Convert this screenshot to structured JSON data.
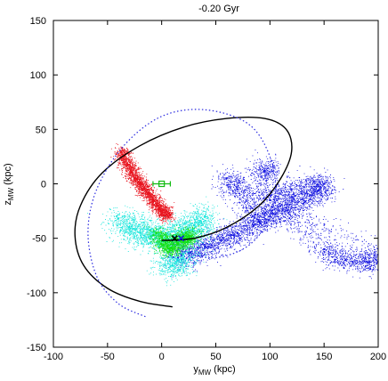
{
  "chart_data": {
    "type": "scatter",
    "title": "-0.20 Gyr",
    "xlabel": {
      "base": "y",
      "sub": "MW",
      "unit": " (kpc)"
    },
    "ylabel": {
      "base": "z",
      "sub": "MW",
      "unit": " (kpc)"
    },
    "xlim": [
      -100,
      200
    ],
    "ylim": [
      -150,
      150
    ],
    "xticks": [
      -100,
      -50,
      0,
      50,
      100,
      150,
      200
    ],
    "yticks": [
      -150,
      -100,
      -50,
      0,
      50,
      100,
      150
    ],
    "grid": false,
    "legend": "none",
    "colors": {
      "red": "#e8141e",
      "blue": "#1414e0",
      "cyan": "#19e6dc",
      "green": "#12e012",
      "orbit": "#000000",
      "dotted": "#2a2ae0",
      "marker_green": "#11bb11"
    },
    "series": [
      {
        "kind": "particles",
        "color": "red",
        "x": [
          -37,
          -35,
          -32,
          -28,
          -24,
          -20,
          -16,
          -12,
          -8,
          -4,
          0,
          4
        ],
        "y": [
          30,
          25,
          18,
          11,
          5,
          0,
          -5,
          -10,
          -15,
          -20,
          -25,
          -29
        ]
      },
      {
        "kind": "particles",
        "color": "blue",
        "x": [
          15,
          25,
          40,
          55,
          70,
          85,
          100,
          115,
          130,
          145,
          150,
          120,
          100,
          150,
          170,
          190,
          200,
          60,
          70,
          90,
          95
        ],
        "y": [
          -68,
          -63,
          -58,
          -52,
          -45,
          -38,
          -30,
          -22,
          -14,
          -6,
          0,
          -5,
          -15,
          -60,
          -70,
          -72,
          -65,
          5,
          -5,
          -35,
          12
        ]
      },
      {
        "kind": "particles",
        "color": "cyan",
        "x": [
          -40,
          -30,
          -20,
          -10,
          0,
          10,
          20,
          30,
          40,
          20,
          10
        ],
        "y": [
          -32,
          -40,
          -45,
          -48,
          -50,
          -50,
          -45,
          -38,
          -30,
          -65,
          -75
        ]
      },
      {
        "kind": "particles",
        "color": "green",
        "x": [
          -5,
          0,
          5,
          10,
          15,
          20,
          25
        ],
        "y": [
          -45,
          -52,
          -58,
          -60,
          -55,
          -50,
          -48
        ]
      },
      {
        "kind": "orbit",
        "style": "solid",
        "color": "orbit",
        "x": [
          10,
          -20,
          -50,
          -72,
          -80,
          -75,
          -55,
          -20,
          20,
          60,
          95,
          115,
          120,
          110,
          90,
          60,
          30,
          0
        ],
        "y": [
          -113,
          -108,
          -96,
          -75,
          -48,
          -20,
          10,
          35,
          52,
          60,
          60,
          50,
          30,
          5,
          -20,
          -40,
          -50,
          -52
        ]
      },
      {
        "kind": "orbit",
        "style": "dotted",
        "color": "dotted",
        "x": [
          -15,
          -40,
          -60,
          -68,
          -60,
          -35,
          0,
          40,
          80,
          100,
          105,
          95,
          75,
          45,
          15
        ],
        "y": [
          -122,
          -110,
          -85,
          -45,
          -5,
          35,
          62,
          68,
          55,
          25,
          -10,
          -40,
          -60,
          -68,
          -60
        ]
      }
    ],
    "markers": [
      {
        "kind": "square-errorbar",
        "x": 0,
        "y": 0,
        "xerr": 8,
        "color": "marker_green"
      },
      {
        "kind": "cross",
        "x": 12,
        "y": -50,
        "color": "orbit"
      },
      {
        "kind": "cross",
        "x": 18,
        "y": -50,
        "color": "blue"
      }
    ]
  }
}
